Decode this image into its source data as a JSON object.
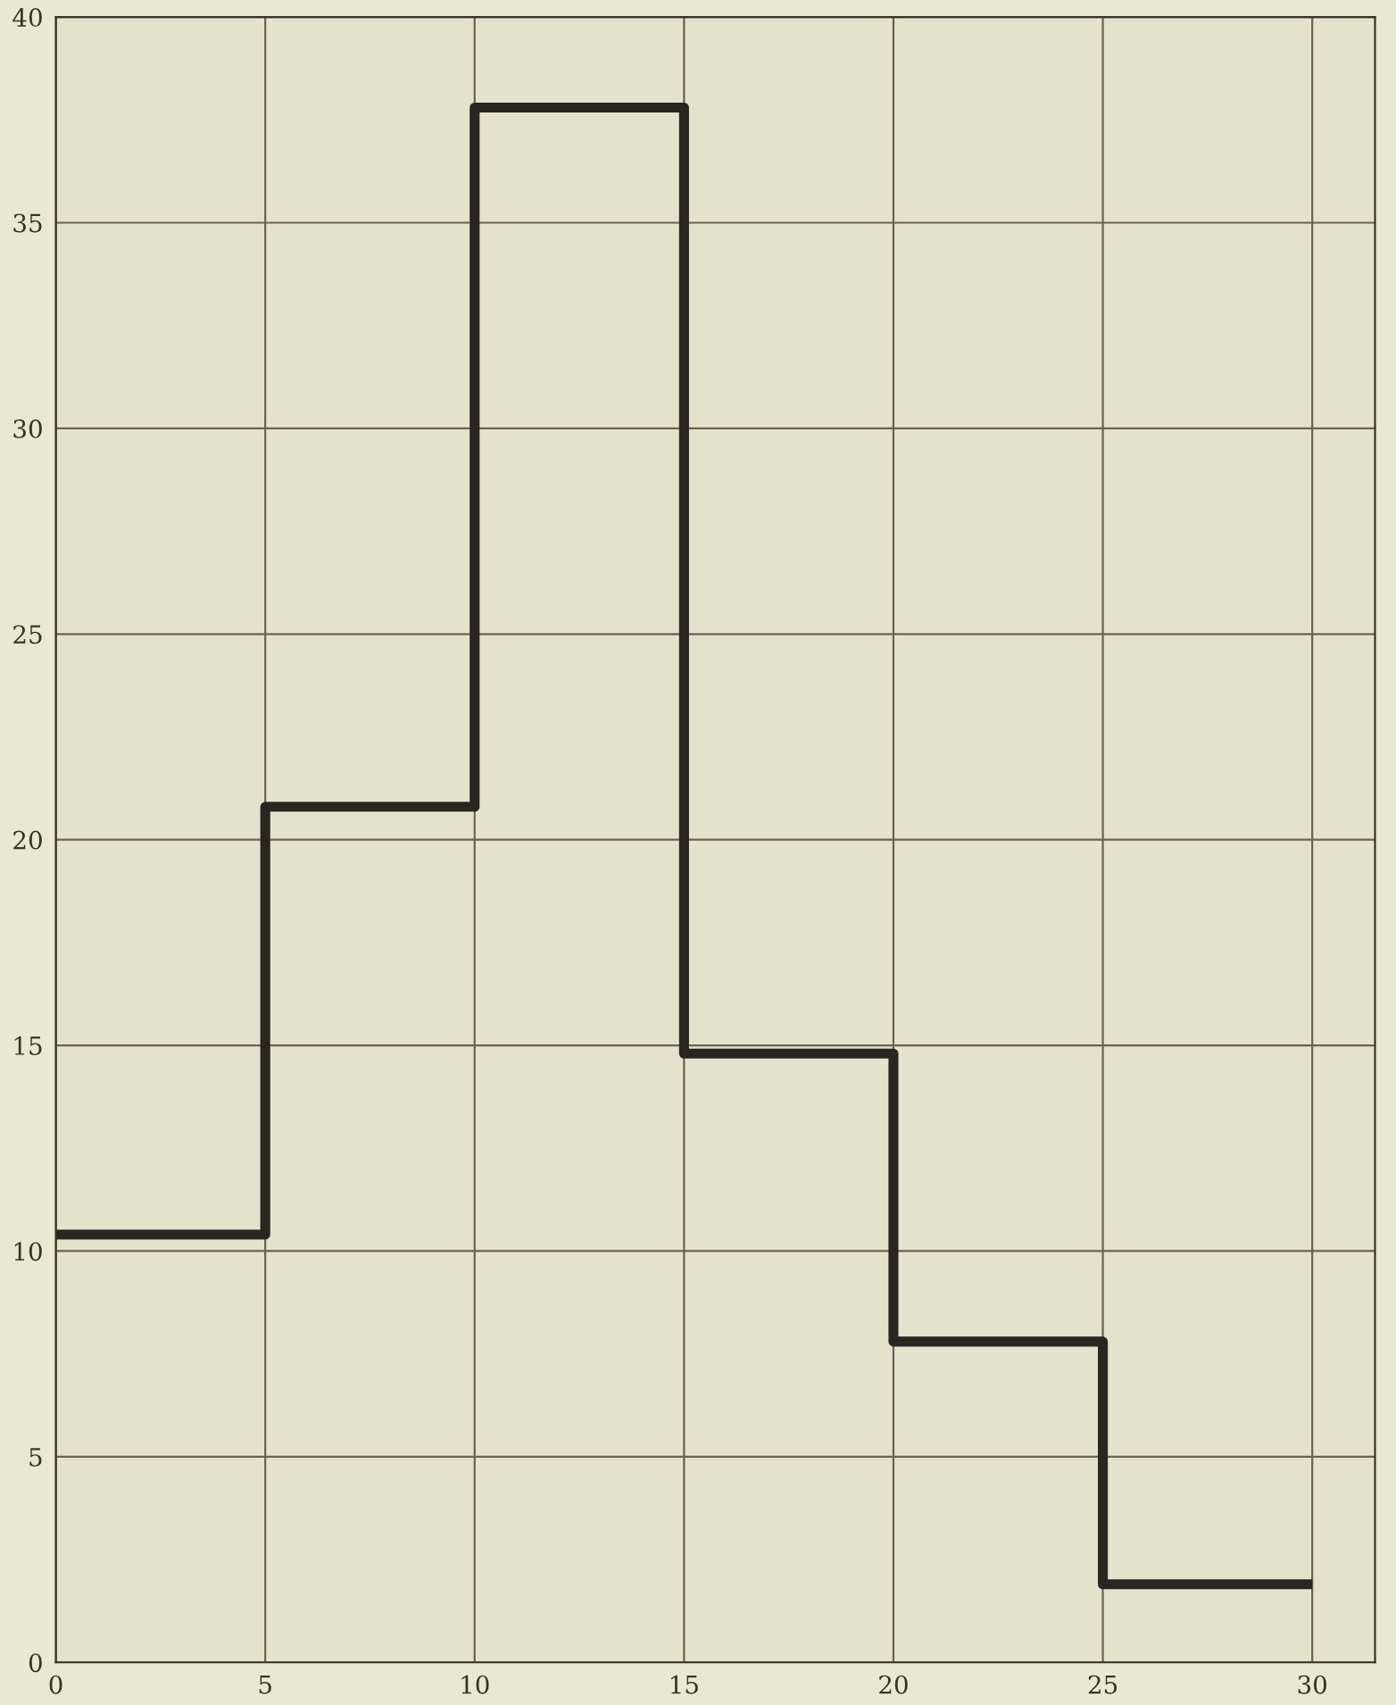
{
  "chart_data": {
    "type": "histogram",
    "bins": [
      0,
      5,
      10,
      15,
      20,
      25,
      30
    ],
    "values": [
      10.4,
      20.8,
      37.8,
      14.8,
      7.8,
      1.9
    ],
    "color": "#2a2520",
    "xlim": [
      0,
      31.5
    ],
    "ylim": [
      0,
      40
    ],
    "xticks": [
      0,
      5,
      10,
      15,
      20,
      25,
      30
    ],
    "yticks": [
      0,
      5,
      10,
      15,
      20,
      25,
      30,
      35,
      40
    ],
    "grid": true
  }
}
